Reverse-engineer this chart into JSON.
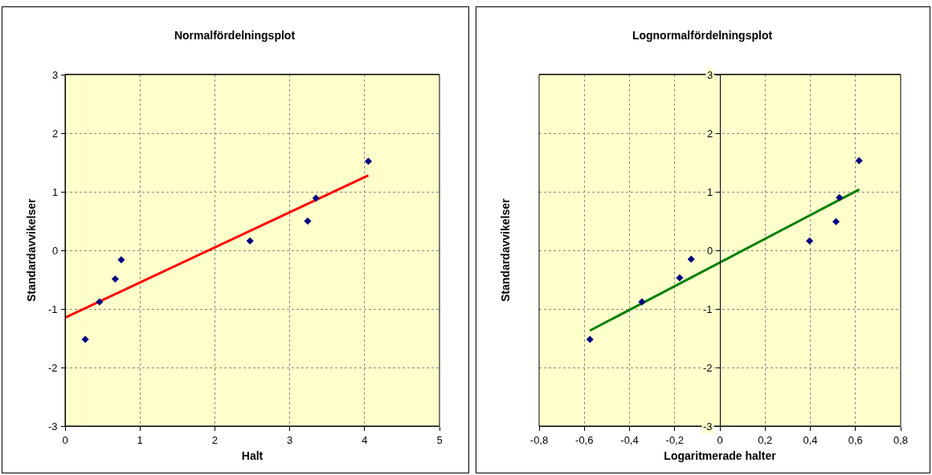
{
  "chart_data": [
    {
      "type": "scatter",
      "title": "Normalfördelningsplot",
      "xlabel": "Halt",
      "ylabel": "Standardavvikelser",
      "xlim": [
        0,
        5
      ],
      "xticks": [
        0,
        1,
        2,
        3,
        4,
        5
      ],
      "ylim": [
        -3,
        3
      ],
      "yticks": [
        -3,
        -2,
        -1,
        0,
        1,
        2,
        3
      ],
      "grid": true,
      "series": [
        {
          "color": "#000080",
          "marker": "diamond",
          "x": [
            0.27,
            0.46,
            0.67,
            0.75,
            2.47,
            3.24,
            3.35,
            4.05
          ],
          "values": [
            -1.52,
            -0.88,
            -0.49,
            -0.16,
            0.16,
            0.5,
            0.89,
            1.52
          ]
        },
        {
          "type": "line",
          "color": "#ff0000",
          "x": [
            0,
            4.05
          ],
          "values": [
            -1.15,
            1.28
          ]
        }
      ]
    },
    {
      "type": "scatter",
      "title": "Lognormalfördelningsplot",
      "xlabel": "Logaritmerade halter",
      "ylabel": "Standardavvikelser",
      "xlim": [
        -0.8,
        0.8
      ],
      "xticks": [
        {
          "value": -0.8,
          "label": "-0,8"
        },
        {
          "value": -0.6,
          "label": "-0,6"
        },
        {
          "value": -0.4,
          "label": "-0,4"
        },
        {
          "value": -0.2,
          "label": "-0,2"
        },
        0,
        {
          "value": 0.2,
          "label": "0,2"
        },
        {
          "value": 0.4,
          "label": "0,4"
        },
        {
          "value": 0.6,
          "label": "0,6"
        },
        {
          "value": 0.8,
          "label": "0,8"
        }
      ],
      "ylim": [
        -3,
        3
      ],
      "yticks": [
        -3,
        -2,
        -1,
        0,
        1,
        2,
        3
      ],
      "grid": true,
      "series": [
        {
          "color": "#000080",
          "marker": "diamond",
          "x": [
            -0.575,
            -0.345,
            -0.178,
            -0.127,
            0.397,
            0.514,
            0.529,
            0.616
          ],
          "values": [
            -1.52,
            -0.88,
            -0.47,
            -0.15,
            0.16,
            0.49,
            0.9,
            1.53
          ]
        },
        {
          "type": "line",
          "color": "#008000",
          "x": [
            -0.575,
            0.617
          ],
          "values": [
            -1.37,
            1.04
          ]
        }
      ]
    }
  ]
}
